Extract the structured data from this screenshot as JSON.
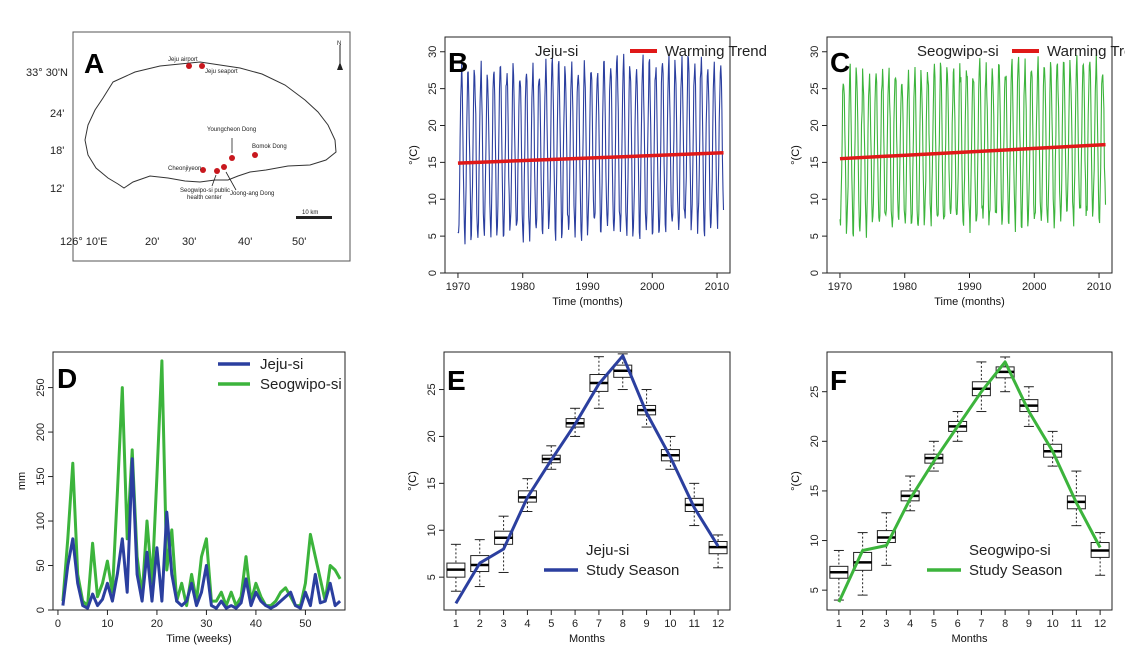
{
  "panels": {
    "A": "A",
    "B": "B",
    "C": "C",
    "D": "D",
    "E": "E",
    "F": "F"
  },
  "colors": {
    "jeju": "#2b3f9f",
    "seogwipo": "#3cb43c",
    "trend": "#e01818",
    "site": "#c8181e"
  },
  "map": {
    "type": "map",
    "north_label": "N",
    "scale_label": "10 km",
    "lat_labels": [
      "33° 30'N",
      "24'",
      "18'",
      "12'"
    ],
    "lon_labels": [
      "126° 10'E",
      "20'",
      "30'",
      "40'",
      "50'"
    ],
    "places": [
      "Jeju airport",
      "Jeju seaport",
      "Youngcheon Dong",
      "Bomok Dong",
      "Cheonjiyeon",
      "Seogwipo-si public",
      "health center",
      "Joong-ang Dong"
    ]
  },
  "chart_data": [
    {
      "panel": "B",
      "type": "line",
      "title": "",
      "xlabel": "Time (months)",
      "ylabel": "°(C)",
      "xlim": [
        1968,
        2012
      ],
      "ylim": [
        0,
        32
      ],
      "xticks": [
        1970,
        1980,
        1990,
        2000,
        2010
      ],
      "yticks": [
        0,
        5,
        10,
        15,
        20,
        25,
        30
      ],
      "series": [
        {
          "name": "Jeju-si",
          "color": "#2b3f9f",
          "x_start": 1970,
          "x_end": 2011,
          "approx_monthly_min": 5,
          "approx_monthly_max": 27.5
        },
        {
          "name": "Warming Trend",
          "color": "#e01818",
          "x": [
            1970,
            2011
          ],
          "values": [
            14.9,
            16.3
          ]
        }
      ]
    },
    {
      "panel": "C",
      "type": "line",
      "title": "",
      "xlabel": "Time (months)",
      "ylabel": "°(C)",
      "xlim": [
        1968,
        2012
      ],
      "ylim": [
        0,
        32
      ],
      "xticks": [
        1970,
        1980,
        1990,
        2000,
        2010
      ],
      "yticks": [
        0,
        5,
        10,
        15,
        20,
        25,
        30
      ],
      "series": [
        {
          "name": "Seogwipo-si",
          "color": "#3cb43c",
          "x_start": 1970,
          "x_end": 2011,
          "approx_monthly_min": 6,
          "approx_monthly_max": 27
        },
        {
          "name": "Warming Trend",
          "color": "#e01818",
          "x": [
            1970,
            2011
          ],
          "values": [
            15.5,
            17.4
          ]
        }
      ]
    },
    {
      "panel": "D",
      "type": "line",
      "title": "",
      "xlabel": "Time (weeks)",
      "ylabel": "mm",
      "xlim": [
        -1,
        58
      ],
      "ylim": [
        0,
        290
      ],
      "xticks": [
        0,
        10,
        20,
        30,
        40,
        50
      ],
      "yticks": [
        0,
        50,
        100,
        150,
        200,
        250
      ],
      "x": [
        1,
        2,
        3,
        4,
        5,
        6,
        7,
        8,
        9,
        10,
        11,
        12,
        13,
        14,
        15,
        16,
        17,
        18,
        19,
        20,
        21,
        22,
        23,
        24,
        25,
        26,
        27,
        28,
        29,
        30,
        31,
        32,
        33,
        34,
        35,
        36,
        37,
        38,
        39,
        40,
        41,
        42,
        43,
        44,
        45,
        46,
        47,
        48,
        49,
        50,
        51,
        52,
        53,
        54,
        55,
        56,
        57
      ],
      "series": [
        {
          "name": "Jeju-si",
          "color": "#2b3f9f",
          "values": [
            5,
            50,
            80,
            30,
            5,
            2,
            18,
            5,
            12,
            30,
            10,
            40,
            80,
            20,
            170,
            40,
            10,
            65,
            10,
            70,
            10,
            110,
            40,
            10,
            5,
            10,
            30,
            5,
            20,
            50,
            5,
            2,
            10,
            2,
            5,
            2,
            8,
            35,
            5,
            20,
            10,
            5,
            2,
            5,
            10,
            15,
            20,
            5,
            2,
            20,
            5,
            40,
            8,
            10,
            30,
            5,
            10
          ]
        },
        {
          "name": "Seogwipo-si",
          "color": "#3cb43c",
          "values": [
            10,
            80,
            165,
            40,
            10,
            5,
            75,
            15,
            30,
            55,
            20,
            130,
            250,
            80,
            180,
            60,
            15,
            100,
            30,
            150,
            280,
            45,
            90,
            10,
            30,
            5,
            40,
            10,
            60,
            80,
            10,
            10,
            20,
            5,
            20,
            5,
            15,
            60,
            10,
            30,
            15,
            5,
            5,
            10,
            20,
            25,
            15,
            5,
            5,
            30,
            85,
            60,
            35,
            10,
            50,
            45,
            35
          ]
        }
      ]
    },
    {
      "panel": "E",
      "type": "box",
      "title": "",
      "xlabel": "Months",
      "ylabel": "°(C)",
      "xlim": [
        0.5,
        12.5
      ],
      "ylim": [
        1.5,
        29
      ],
      "categories": [
        "1",
        "2",
        "3",
        "4",
        "5",
        "6",
        "7",
        "8",
        "9",
        "10",
        "11",
        "12"
      ],
      "yticks": [
        5,
        10,
        15,
        20,
        25
      ],
      "boxes": [
        {
          "min": 3.5,
          "q1": 5.0,
          "median": 5.8,
          "q3": 6.5,
          "max": 8.5
        },
        {
          "min": 4.0,
          "q1": 5.6,
          "median": 6.3,
          "q3": 7.3,
          "max": 9.0
        },
        {
          "min": 5.5,
          "q1": 8.5,
          "median": 9.2,
          "q3": 9.9,
          "max": 11.5
        },
        {
          "min": 12.0,
          "q1": 13.0,
          "median": 13.5,
          "q3": 14.2,
          "max": 15.5
        },
        {
          "min": 16.5,
          "q1": 17.2,
          "median": 17.6,
          "q3": 18.0,
          "max": 19.0
        },
        {
          "min": 20.0,
          "q1": 21.0,
          "median": 21.4,
          "q3": 21.9,
          "max": 23.0
        },
        {
          "min": 23.0,
          "q1": 24.8,
          "median": 25.7,
          "q3": 26.6,
          "max": 28.5
        },
        {
          "min": 25.0,
          "q1": 26.3,
          "median": 27.0,
          "q3": 27.6,
          "max": 28.8
        },
        {
          "min": 21.0,
          "q1": 22.3,
          "median": 22.8,
          "q3": 23.3,
          "max": 25.0
        },
        {
          "min": 16.5,
          "q1": 17.4,
          "median": 18.0,
          "q3": 18.6,
          "max": 20.0
        },
        {
          "min": 10.5,
          "q1": 12.0,
          "median": 12.7,
          "q3": 13.4,
          "max": 15.0
        },
        {
          "min": 6.0,
          "q1": 7.5,
          "median": 8.2,
          "q3": 8.8,
          "max": 9.5
        }
      ],
      "line": {
        "name": "Study Season",
        "legend_entry": "Jeju-si",
        "color": "#2b3f9f",
        "x": [
          1,
          2,
          3,
          4,
          5,
          6,
          7,
          8,
          9,
          10,
          11,
          12
        ],
        "values": [
          2.2,
          6.5,
          8.0,
          13.5,
          17.5,
          21.3,
          25.6,
          28.6,
          22.5,
          17.8,
          12.4,
          8.3
        ]
      }
    },
    {
      "panel": "F",
      "type": "box",
      "title": "",
      "xlabel": "Months",
      "ylabel": "°(C)",
      "xlim": [
        0.5,
        12.5
      ],
      "ylim": [
        3,
        29
      ],
      "categories": [
        "1",
        "2",
        "3",
        "4",
        "5",
        "6",
        "7",
        "8",
        "9",
        "10",
        "11",
        "12"
      ],
      "yticks": [
        5,
        10,
        15,
        20,
        25
      ],
      "boxes": [
        {
          "min": 4.0,
          "q1": 6.2,
          "median": 6.8,
          "q3": 7.4,
          "max": 9.0
        },
        {
          "min": 4.5,
          "q1": 7.0,
          "median": 7.8,
          "q3": 8.8,
          "max": 10.8
        },
        {
          "min": 7.5,
          "q1": 9.8,
          "median": 10.3,
          "q3": 11.0,
          "max": 12.8
        },
        {
          "min": 13.0,
          "q1": 14.0,
          "median": 14.5,
          "q3": 15.0,
          "max": 16.5
        },
        {
          "min": 17.0,
          "q1": 17.8,
          "median": 18.3,
          "q3": 18.7,
          "max": 20.0
        },
        {
          "min": 20.0,
          "q1": 21.0,
          "median": 21.5,
          "q3": 22.0,
          "max": 23.0
        },
        {
          "min": 23.0,
          "q1": 24.6,
          "median": 25.3,
          "q3": 26.0,
          "max": 28.0
        },
        {
          "min": 25.0,
          "q1": 26.4,
          "median": 27.0,
          "q3": 27.5,
          "max": 28.5
        },
        {
          "min": 21.5,
          "q1": 23.0,
          "median": 23.6,
          "q3": 24.2,
          "max": 25.5
        },
        {
          "min": 17.5,
          "q1": 18.4,
          "median": 19.0,
          "q3": 19.7,
          "max": 21.0
        },
        {
          "min": 11.5,
          "q1": 13.2,
          "median": 13.9,
          "q3": 14.5,
          "max": 17.0
        },
        {
          "min": 6.5,
          "q1": 8.3,
          "median": 9.0,
          "q3": 9.8,
          "max": 10.8
        }
      ],
      "line": {
        "name": "Study Season",
        "legend_entry": "Seogwipo-si",
        "color": "#3cb43c",
        "x": [
          1,
          2,
          3,
          4,
          5,
          6,
          7,
          8,
          9,
          10,
          11,
          12
        ],
        "values": [
          3.8,
          9.0,
          9.5,
          14.2,
          18.0,
          21.5,
          25.0,
          28.0,
          23.0,
          19.0,
          13.8,
          9.3
        ]
      }
    }
  ]
}
